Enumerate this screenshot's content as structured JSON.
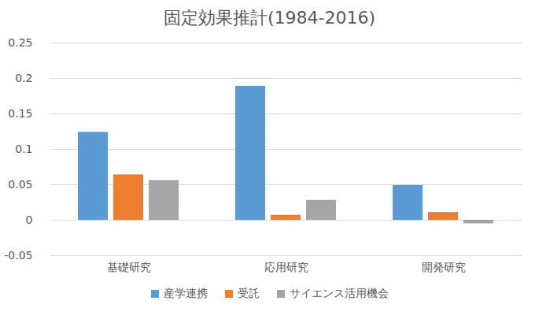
{
  "chart_data": {
    "type": "bar",
    "title": "固定効果推計(1984-2016)",
    "categories": [
      "基礎研究",
      "応用研究",
      "開発研究"
    ],
    "series": [
      {
        "name": "産学連携",
        "color": "#5b9bd5",
        "values": [
          0.124,
          0.189,
          0.049
        ]
      },
      {
        "name": "受託",
        "color": "#ed7d31",
        "values": [
          0.064,
          0.007,
          0.011
        ]
      },
      {
        "name": "サイエンス活用機会",
        "color": "#a5a5a5",
        "values": [
          0.056,
          0.028,
          -0.005
        ]
      }
    ],
    "ylim": [
      -0.05,
      0.25
    ],
    "yticks": [
      -0.05,
      0,
      0.05,
      0.1,
      0.15,
      0.2,
      0.25
    ],
    "grid": true,
    "legend": "bottom"
  }
}
